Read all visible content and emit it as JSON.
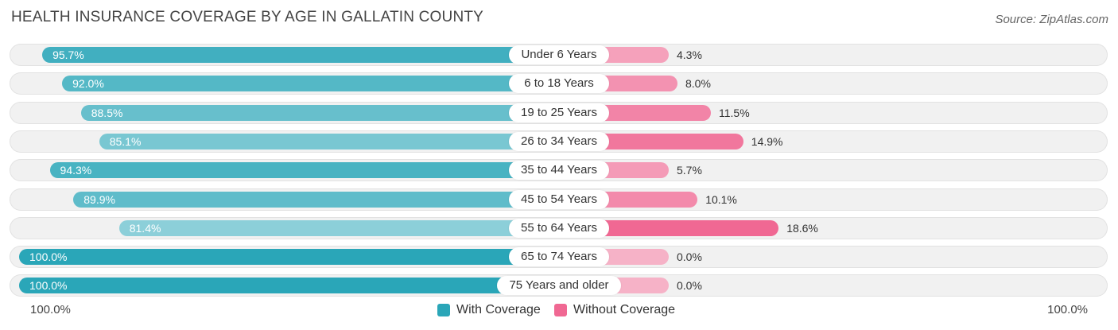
{
  "chart_data": {
    "type": "bar",
    "orientation": "horizontal-diverging",
    "title": "HEALTH INSURANCE COVERAGE BY AGE IN GALLATIN COUNTY",
    "source": "Source: ZipAtlas.com",
    "categories": [
      "Under 6 Years",
      "6 to 18 Years",
      "19 to 25 Years",
      "26 to 34 Years",
      "35 to 44 Years",
      "45 to 54 Years",
      "55 to 64 Years",
      "65 to 74 Years",
      "75 Years and older"
    ],
    "series": [
      {
        "name": "With Coverage",
        "values": [
          95.7,
          92.0,
          88.5,
          85.1,
          94.3,
          89.9,
          81.4,
          100.0,
          100.0
        ],
        "labels": [
          "95.7%",
          "92.0%",
          "88.5%",
          "85.1%",
          "94.3%",
          "89.9%",
          "81.4%",
          "100.0%",
          "100.0%"
        ]
      },
      {
        "name": "Without Coverage",
        "values": [
          4.3,
          8.0,
          11.5,
          14.9,
          5.7,
          10.1,
          18.6,
          0.0,
          0.0
        ],
        "labels": [
          "4.3%",
          "8.0%",
          "11.5%",
          "14.9%",
          "5.7%",
          "10.1%",
          "18.6%",
          "0.0%",
          "0.0%"
        ]
      }
    ],
    "axis_left_label": "100.0%",
    "axis_right_label": "100.0%",
    "xlim": [
      0,
      100
    ],
    "legend": {
      "position": "bottom-center",
      "items": [
        "With Coverage",
        "Without Coverage"
      ]
    },
    "colors": {
      "with_strong": "#2aa6b8",
      "with_light": "#8ccfd9",
      "without_strong": "#f06893",
      "without_light": "#f6b2c7"
    }
  }
}
